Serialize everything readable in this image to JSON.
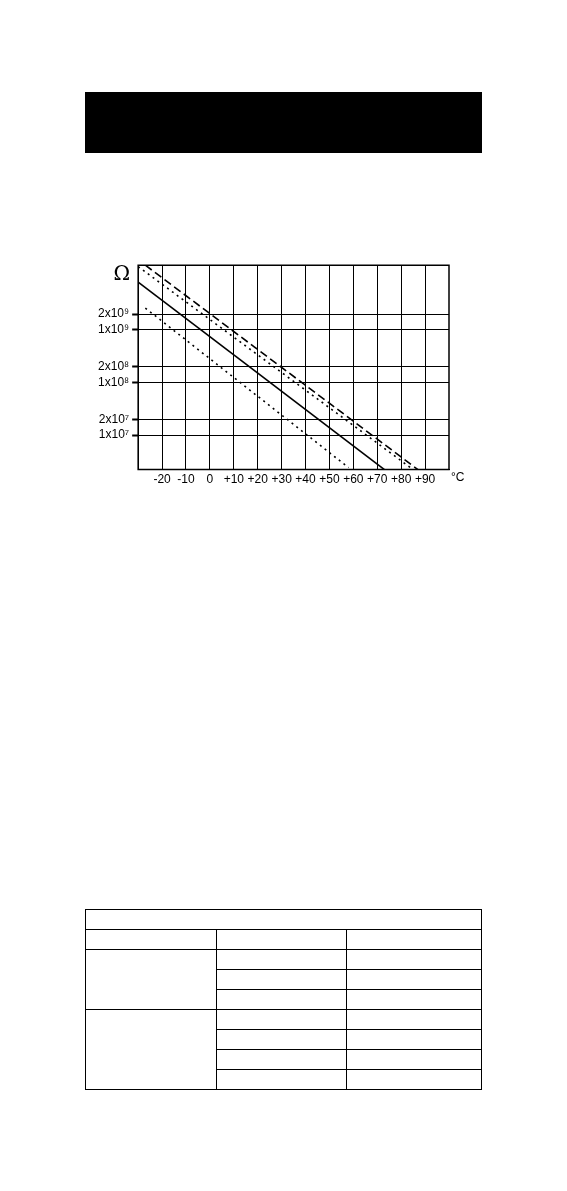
{
  "chart_data": {
    "type": "line",
    "ylabel": "Ω",
    "xlabel": "°C",
    "log": true,
    "grid": true,
    "xlim": [
      -30,
      100
    ],
    "ylim": [
      2200000,
      17000000000
    ],
    "xticks": [
      {
        "value": -20,
        "label": "-20"
      },
      {
        "value": -10,
        "label": "-10"
      },
      0,
      {
        "value": 10,
        "label": "+10"
      },
      {
        "value": 20,
        "label": "+20"
      },
      {
        "value": 30,
        "label": "+30"
      },
      {
        "value": 40,
        "label": "+40"
      },
      {
        "value": 50,
        "label": "+50"
      },
      {
        "value": 60,
        "label": "+60"
      },
      {
        "value": 70,
        "label": "+70"
      },
      {
        "value": 80,
        "label": "+80"
      },
      {
        "value": 90,
        "label": "+90"
      }
    ],
    "yticks": [
      {
        "value": 10000000,
        "label": "1x10⁷"
      },
      {
        "value": 20000000,
        "label": "2x10⁷"
      },
      {
        "value": 100000000,
        "label": "1x10⁸"
      },
      {
        "value": 200000000,
        "label": "2x10⁸"
      },
      {
        "value": 1000000000,
        "label": "1x10⁹"
      },
      {
        "value": 2000000000,
        "label": "2x10⁹"
      }
    ],
    "series": [
      {
        "color": "#000000",
        "line_style": "solid",
        "x": [
          -30,
          73
        ],
        "values": [
          8100000000,
          2200000
        ]
      },
      {
        "color": "#000000",
        "line_style": "dashed",
        "x": [
          -27,
          87
        ],
        "values": [
          17000000000,
          2200000
        ]
      },
      {
        "color": "#000000",
        "line_style": "dotted",
        "x": [
          -30,
          85
        ],
        "values": [
          16000000000,
          2200000
        ]
      },
      {
        "color": "#000000",
        "line_style": "dotted",
        "x": [
          -27,
          58
        ],
        "values": [
          2600000000,
          2400000
        ]
      }
    ]
  }
}
